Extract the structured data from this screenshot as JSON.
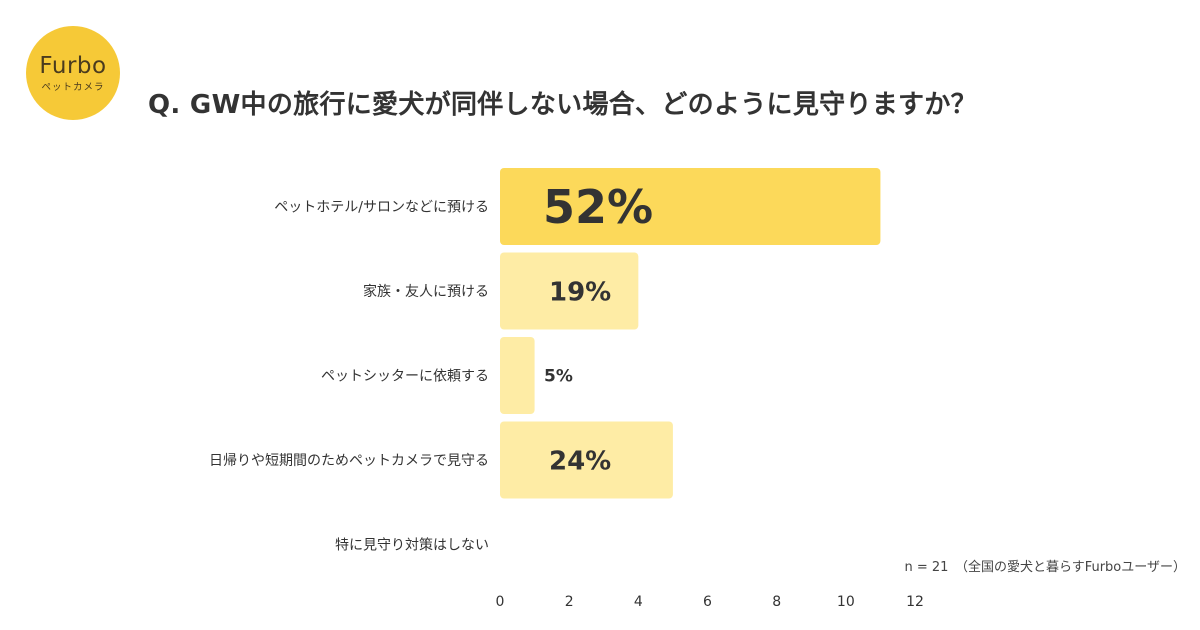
{
  "logo": {
    "word": "Furbo",
    "sub": "ペットカメラ"
  },
  "title": "Q. GW中の旅行に愛犬が同伴しない場合、どのように見守りますか？",
  "note": "n = 21　（全国の愛犬と暮らすFurboユーザー）",
  "chart_data": {
    "type": "bar",
    "orientation": "horizontal",
    "title": "Q. GW中の旅行に愛犬が同伴しない場合、どのように見守りますか？",
    "categories": [
      "ペットホテル/サロンなどに預ける",
      "家族・友人に預ける",
      "ペットシッターに依頼する",
      "日帰りや短期間のためペットカメラで見守る",
      "特に見守り対策はしない"
    ],
    "values": [
      11,
      4,
      1,
      5,
      0
    ],
    "data_labels": [
      "52%",
      "19%",
      "5%",
      "24%",
      ""
    ],
    "xlim": [
      0,
      12
    ],
    "xticks": [
      0,
      2,
      4,
      6,
      8,
      10,
      12
    ],
    "grid": false,
    "colors": {
      "highlight": "#fcd95a",
      "bar": "#feeca5",
      "text": "#333333"
    }
  }
}
